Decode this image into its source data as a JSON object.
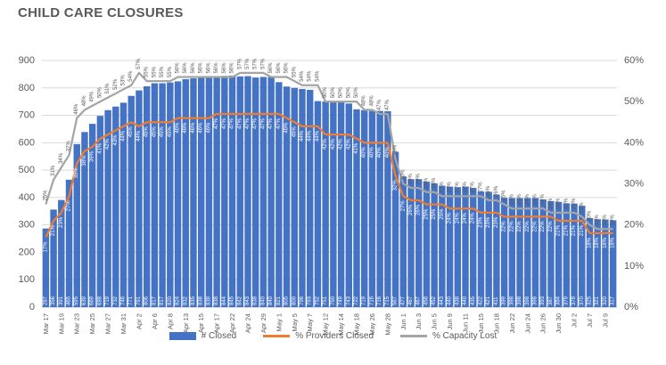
{
  "chart_data": {
    "type": "bar",
    "combo": "bar+line",
    "title": "CHILD CARE CLOSURES",
    "categories": [
      "Mar 17",
      "",
      "Mar 19",
      "",
      "Mar 23",
      "",
      "Mar 25",
      "",
      "Mar 27",
      "",
      "Mar 31",
      "",
      "Apr 2",
      "",
      "Apr 6",
      "",
      "Apr 8",
      "",
      "Apr 13",
      "",
      "Apr 15",
      "",
      "Apr 17",
      "",
      "Apr 22",
      "",
      "Apr 24",
      "",
      "Apr 29",
      "",
      "May 1",
      "",
      "May 5",
      "",
      "May 7",
      "",
      "May 12",
      "",
      "May 14",
      "",
      "May 18",
      "",
      "May 26",
      "",
      "May 28",
      "",
      "Jun 1",
      "",
      "Jun 3",
      "",
      "Jun 5",
      "",
      "Jun 9",
      "",
      "Jun 11",
      "",
      "Jun 15",
      "",
      "Jun 18",
      "",
      "Jun 22",
      "",
      "Jun 24",
      "",
      "Jun 26",
      "",
      "Jun 30",
      "",
      "Jul 2",
      "",
      "Jul 7",
      "",
      "Jul 9",
      ""
    ],
    "series": [
      {
        "name": "# Closed",
        "type": "bar",
        "axis": "left",
        "color": "#4472C4",
        "values": [
          287,
          356,
          391,
          465,
          595,
          639,
          669,
          698,
          719,
          732,
          746,
          771,
          791,
          806,
          817,
          817,
          820,
          824,
          832,
          835,
          838,
          839,
          838,
          844,
          845,
          842,
          843,
          838,
          840,
          840,
          821,
          805,
          800,
          796,
          793,
          752,
          751,
          750,
          749,
          743,
          722,
          719,
          716,
          716,
          715,
          567,
          477,
          467,
          467,
          458,
          452,
          443,
          440,
          438,
          440,
          435,
          422,
          421,
          411,
          399,
          398,
          398,
          398,
          398,
          393,
          387,
          384,
          379,
          378,
          370,
          325,
          321,
          320,
          317
        ]
      },
      {
        "name": "% Providers Closed",
        "type": "line",
        "axis": "right",
        "color": "#ED7D31",
        "label_suffix": "%",
        "values": [
          17,
          21,
          23,
          27,
          35,
          38,
          39,
          41,
          42,
          43,
          44,
          45,
          44,
          45,
          45,
          45,
          45,
          46,
          46,
          46,
          46,
          46,
          47,
          47,
          47,
          47,
          47,
          47,
          47,
          47,
          47,
          46,
          45,
          44,
          44,
          44,
          42,
          42,
          42,
          42,
          41,
          40,
          40,
          40,
          40,
          32,
          27,
          26,
          26,
          25,
          25,
          25,
          24,
          24,
          24,
          24,
          23,
          23,
          23,
          22,
          22,
          22,
          22,
          22,
          22,
          22,
          21,
          21,
          21,
          21,
          18,
          18,
          18,
          18
        ]
      },
      {
        "name": "% Capacity Lost",
        "type": "line",
        "axis": "right",
        "color": "#A5A5A5",
        "label_suffix": "%",
        "values": [
          25,
          31,
          34,
          37,
          46,
          48,
          49,
          50,
          51,
          52,
          53,
          54,
          57,
          55,
          55,
          55,
          55,
          56,
          56,
          56,
          56,
          56,
          56,
          56,
          56,
          57,
          57,
          57,
          57,
          56,
          56,
          56,
          55,
          54,
          54,
          54,
          50,
          50,
          50,
          50,
          50,
          48,
          48,
          47,
          47,
          36,
          30,
          29,
          29,
          28,
          28,
          27,
          27,
          27,
          27,
          27,
          27,
          26,
          26,
          25,
          24,
          24,
          24,
          24,
          24,
          23,
          23,
          23,
          23,
          22,
          20,
          19,
          19,
          19
        ]
      }
    ],
    "left_axis": {
      "min": 0,
      "max": 900,
      "tick_labels": [
        "0",
        "100",
        "200",
        "300",
        "400",
        "500",
        "600",
        "700",
        "800",
        "900"
      ]
    },
    "right_axis": {
      "min": 0,
      "max": 60,
      "tick_labels": [
        "0%",
        "10%",
        "20%",
        "30%",
        "40%",
        "50%",
        "60%"
      ]
    },
    "grid": true,
    "data_labels": true,
    "legend_position": "bottom",
    "colors": {
      "axis_text": "#595959",
      "gridline": "#D9D9D9",
      "axis_line": "#BFBFBF",
      "bar_label": "#FFFFFF"
    }
  }
}
